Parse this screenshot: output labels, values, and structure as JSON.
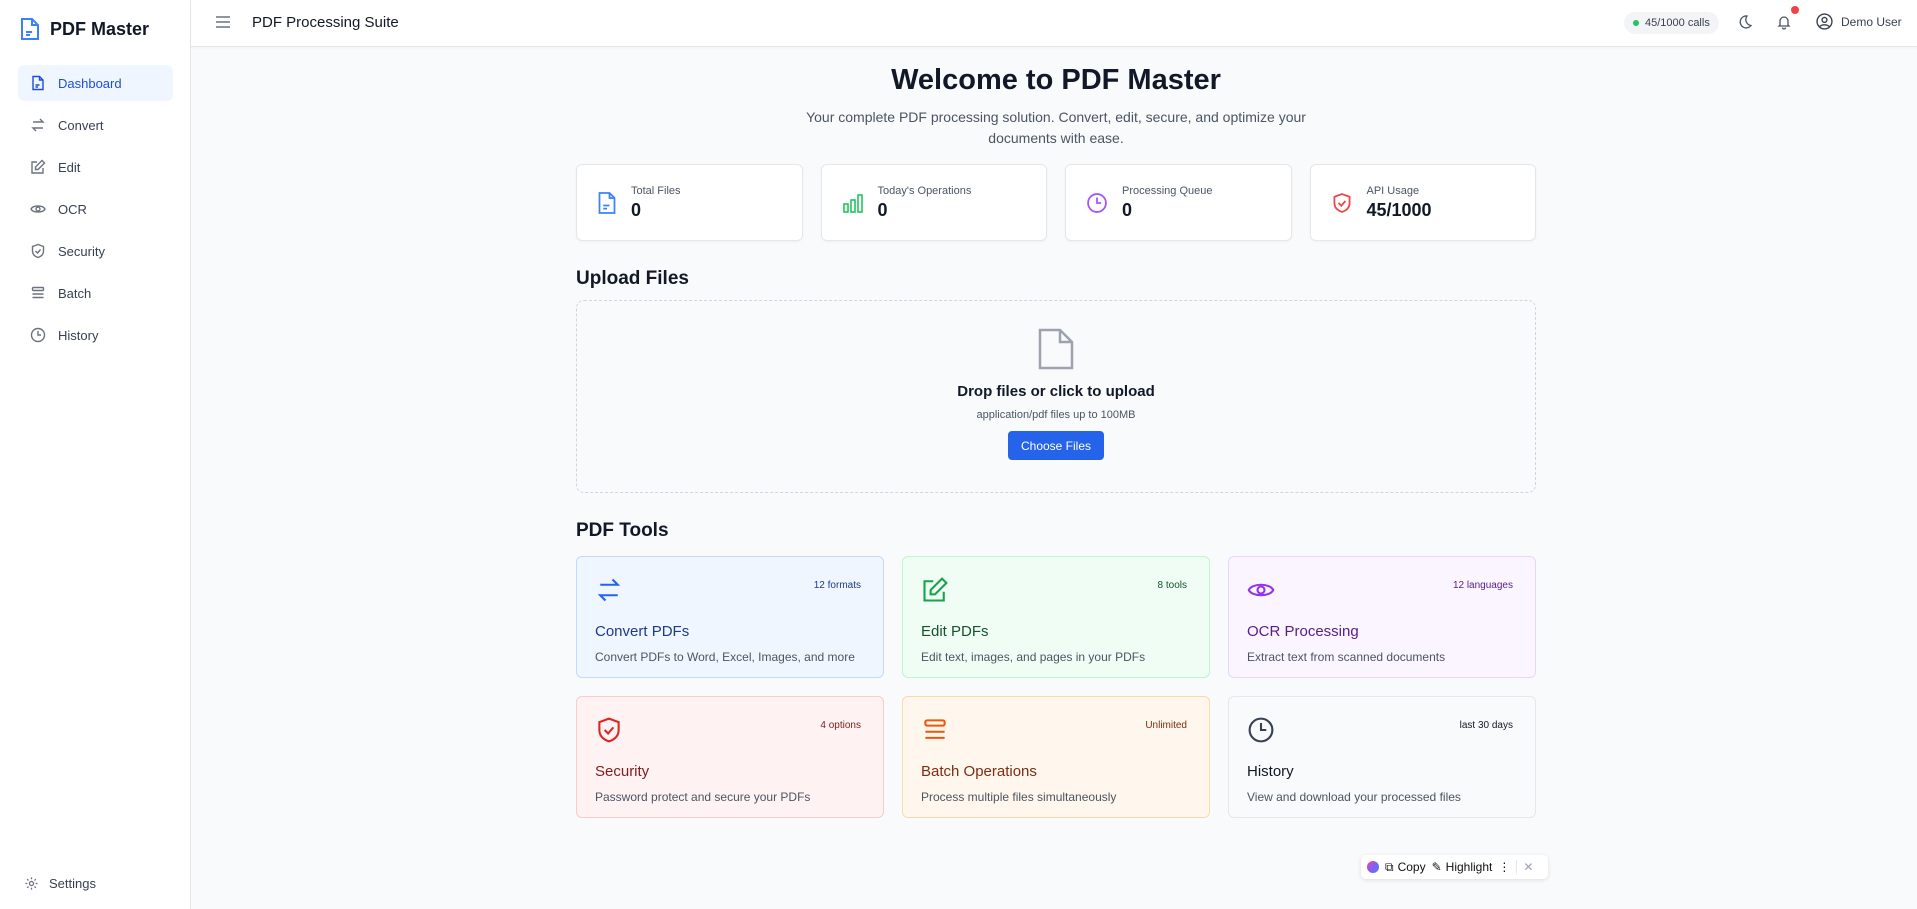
{
  "app": {
    "name": "PDF Master",
    "header_title": "PDF Processing Suite"
  },
  "sidebar": {
    "items": [
      {
        "label": "Dashboard",
        "icon": "file-text-icon",
        "active": true
      },
      {
        "label": "Convert",
        "icon": "arrows-exchange-icon"
      },
      {
        "label": "Edit",
        "icon": "edit-icon"
      },
      {
        "label": "OCR",
        "icon": "eye-icon"
      },
      {
        "label": "Security",
        "icon": "shield-check-icon"
      },
      {
        "label": "Batch",
        "icon": "stack-icon"
      },
      {
        "label": "History",
        "icon": "clock-icon"
      }
    ],
    "settings": "Settings"
  },
  "header": {
    "calls": "45/1000 calls",
    "user": "Demo User"
  },
  "welcome": {
    "title": "Welcome to PDF Master",
    "subtitle": "Your complete PDF processing solution. Convert, edit, secure, and optimize your documents with ease."
  },
  "stats": [
    {
      "label": "Total Files",
      "value": "0",
      "color": "#3b82f6"
    },
    {
      "label": "Today's Operations",
      "value": "0",
      "color": "#22c55e"
    },
    {
      "label": "Processing Queue",
      "value": "0",
      "color": "#a855f7"
    },
    {
      "label": "API Usage",
      "value": "45/1000",
      "color": "#ef4444"
    }
  ],
  "upload": {
    "heading": "Upload Files",
    "title": "Drop files or click to upload",
    "subtitle": "application/pdf files up to 100MB",
    "button": "Choose Files"
  },
  "tools": {
    "heading": "PDF Tools",
    "items": [
      {
        "title": "Convert PDFs",
        "desc": "Convert PDFs to Word, Excel, Images, and more",
        "count": "12 formats"
      },
      {
        "title": "Edit PDFs",
        "desc": "Edit text, images, and pages in your PDFs",
        "count": "8 tools"
      },
      {
        "title": "OCR Processing",
        "desc": "Extract text from scanned documents",
        "count": "12 languages"
      },
      {
        "title": "Security",
        "desc": "Password protect and secure your PDFs",
        "count": "4 options"
      },
      {
        "title": "Batch Operations",
        "desc": "Process multiple files simultaneously",
        "count": "Unlimited"
      },
      {
        "title": "History",
        "desc": "View and download your processed files",
        "count": "last 30 days"
      }
    ]
  },
  "popup": {
    "copy": "Copy",
    "highlight": "Highlight"
  }
}
